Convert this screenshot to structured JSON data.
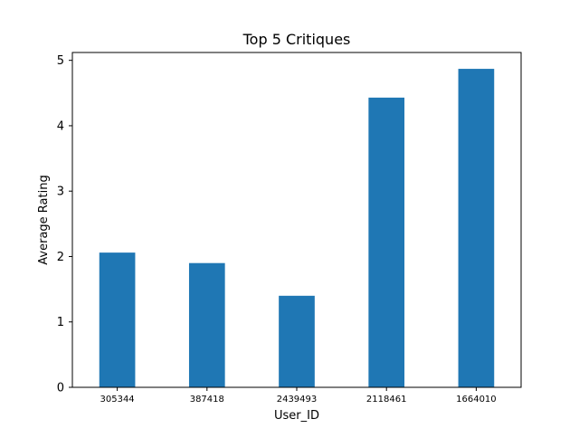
{
  "chart_data": {
    "type": "bar",
    "title": "Top 5 Critiques",
    "xlabel": "User_ID",
    "ylabel": "Average Rating",
    "categories": [
      "305344",
      "387418",
      "2439493",
      "2118461",
      "1664010"
    ],
    "values": [
      2.06,
      1.9,
      1.4,
      4.43,
      4.87
    ],
    "ylim": [
      0,
      5.12
    ],
    "yticks": [
      0,
      1,
      2,
      3,
      4,
      5
    ],
    "grid": false,
    "colors": {
      "bar": "#1f77b4",
      "axis": "#000000",
      "background": "#ffffff"
    }
  }
}
